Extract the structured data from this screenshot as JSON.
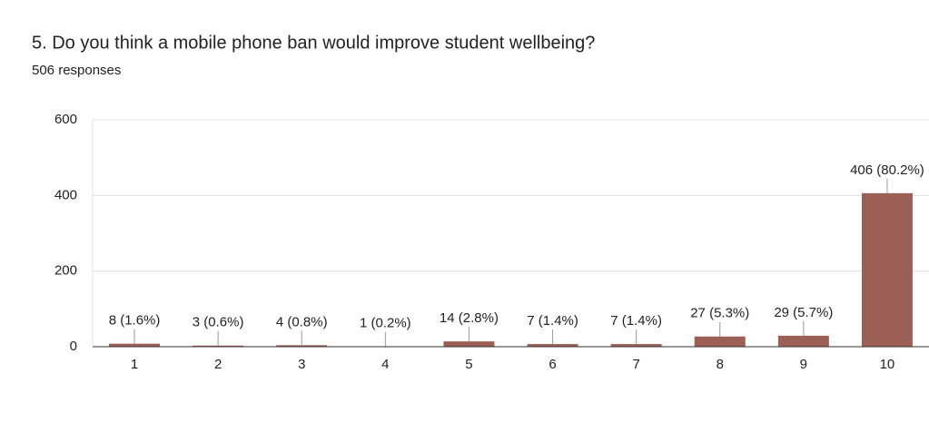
{
  "chart_data": {
    "type": "bar",
    "title": "5.  Do you think a mobile phone ban would improve student wellbeing?",
    "subtitle": "506 responses",
    "categories": [
      "1",
      "2",
      "3",
      "4",
      "5",
      "6",
      "7",
      "8",
      "9",
      "10"
    ],
    "values": [
      8,
      3,
      4,
      1,
      14,
      7,
      7,
      27,
      29,
      406
    ],
    "value_labels": [
      "8 (1.6%)",
      "3 (0.6%)",
      "4 (0.8%)",
      "1 (0.2%)",
      "14 (2.8%)",
      "7 (1.4%)",
      "7 (1.4%)",
      "27 (5.3%)",
      "29 (5.7%)",
      "406 (80.2%)"
    ],
    "color": "#9c5f55",
    "ylim": [
      0,
      600
    ],
    "yticks": [
      0,
      200,
      400,
      600
    ],
    "grid": true
  }
}
